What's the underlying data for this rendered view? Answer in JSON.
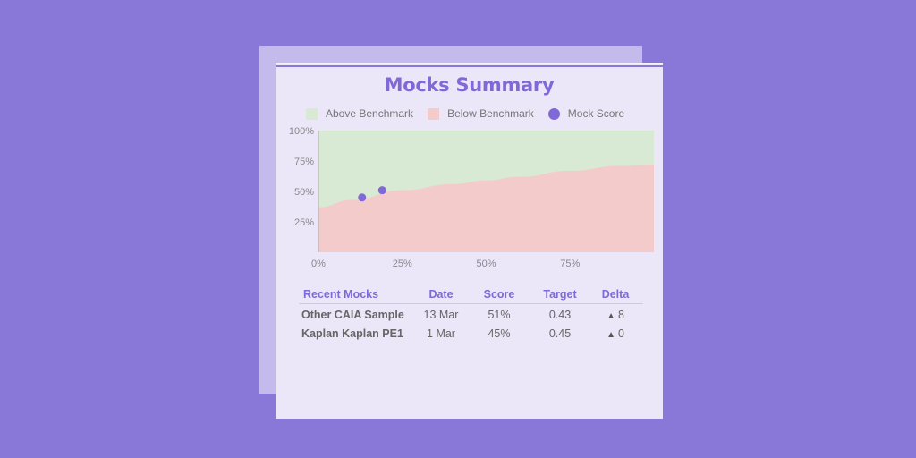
{
  "title": "Mocks Summary",
  "colors": {
    "background": "#8a78d8",
    "accent": "#8069d6",
    "above": "#d8ead3",
    "below": "#f3cbcb",
    "dot": "#8069d6"
  },
  "legend": [
    {
      "label": "Above Benchmark",
      "color": "#d8ead3",
      "shape": "square"
    },
    {
      "label": "Below Benchmark",
      "color": "#f3cbcb",
      "shape": "square"
    },
    {
      "label": "Mock Score",
      "color": "#8069d6",
      "shape": "circle"
    }
  ],
  "chart_data": {
    "type": "area",
    "title": "Mocks Summary",
    "xlabel": "",
    "ylabel": "",
    "xlim": [
      0,
      100
    ],
    "ylim": [
      0,
      100
    ],
    "x_ticks": [
      "0%",
      "25%",
      "50%",
      "75%"
    ],
    "y_ticks": [
      "25%",
      "50%",
      "75%",
      "100%"
    ],
    "grid": false,
    "legend_position": "top",
    "series": [
      {
        "name": "Benchmark boundary (Below Benchmark area)",
        "type": "area",
        "x": [
          0,
          10,
          25,
          40,
          50,
          60,
          75,
          90,
          100
        ],
        "values": [
          37,
          43,
          51,
          56,
          59,
          62,
          67,
          71,
          72
        ]
      },
      {
        "name": "Mock Score",
        "type": "scatter",
        "x": [
          13,
          19
        ],
        "values": [
          45,
          51
        ]
      }
    ]
  },
  "table": {
    "headers": [
      "Recent Mocks",
      "Date",
      "Score",
      "Target",
      "Delta"
    ],
    "rows": [
      {
        "name": "Other CAIA Sample",
        "date": "13 Mar",
        "score": "51%",
        "target": "0.43",
        "delta_icon": "▲",
        "delta": "8"
      },
      {
        "name": "Kaplan Kaplan PE1",
        "date": "1 Mar",
        "score": "45%",
        "target": "0.45",
        "delta_icon": "▲",
        "delta": "0"
      }
    ]
  }
}
